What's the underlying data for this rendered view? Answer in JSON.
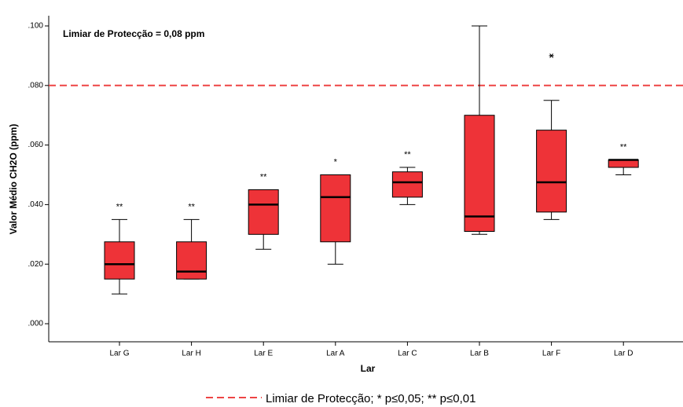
{
  "chart_data": {
    "type": "box",
    "annotation": "Limiar de Protecção = 0,08 ppm",
    "x_label": "Lar",
    "y_label": "Valor Médio CH2O (ppm)",
    "categories": [
      "Lar G",
      "Lar H",
      "Lar E",
      "Lar A",
      "Lar C",
      "Lar B",
      "Lar F",
      "Lar D"
    ],
    "color": "#ee3338",
    "min": [
      0.01,
      0.015,
      0.025,
      0.02,
      0.04,
      0.03,
      0.035,
      0.05
    ],
    "q1": [
      0.015,
      0.015,
      0.03,
      0.0275,
      0.0425,
      0.031,
      0.0375,
      0.0525
    ],
    "median": [
      0.02,
      0.0175,
      0.04,
      0.0425,
      0.0475,
      0.036,
      0.0475,
      0.055
    ],
    "q3": [
      0.0275,
      0.0275,
      0.045,
      0.05,
      0.051,
      0.07,
      0.065,
      0.055
    ],
    "max": [
      0.035,
      0.035,
      0.045,
      0.05,
      0.0525,
      0.1,
      0.075,
      0.055
    ],
    "outliers": [
      [],
      [],
      [],
      [],
      [],
      [],
      [
        0.09
      ],
      []
    ],
    "significance": [
      "**",
      "**",
      "**",
      "*",
      "**",
      null,
      null,
      "**"
    ],
    "reference_line": {
      "value": 0.08,
      "color": "#ee4444",
      "legend": "Limiar de Protecção; * p≤0,05; ** p≤0,01"
    },
    "ylim": [
      0,
      0.1
    ],
    "yticks": [
      {
        "value": 0,
        "label": ".000"
      },
      {
        "value": 0.02,
        "label": ".020"
      },
      {
        "value": 0.04,
        "label": ".040"
      },
      {
        "value": 0.06,
        "label": ".060"
      },
      {
        "value": 0.08,
        "label": ".080"
      },
      {
        "value": 0.1,
        "label": ".100"
      }
    ]
  }
}
